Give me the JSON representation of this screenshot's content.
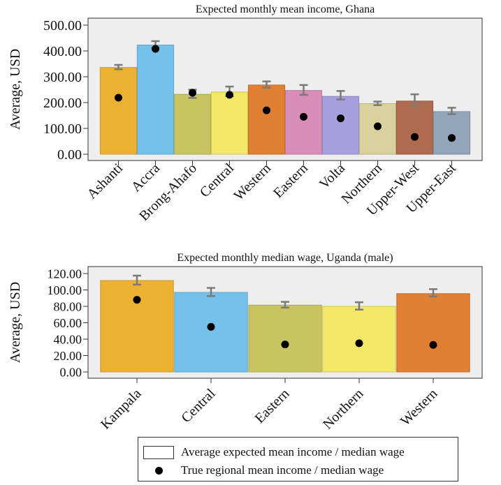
{
  "chart_data": [
    {
      "type": "bar",
      "title": "Expected monthly mean income, Ghana",
      "ylabel": "Average, USD",
      "xlabel": "",
      "ylim": [
        0,
        500
      ],
      "yticks": [
        "0.00",
        "100.00",
        "200.00",
        "300.00",
        "400.00",
        "500.00"
      ],
      "grid": false,
      "categories": [
        "Ashanti",
        "Accra",
        "Brong-Ahafo",
        "Central",
        "Western",
        "Eastern",
        "Volta",
        "Northern",
        "Upper-West",
        "Upper-East"
      ],
      "bar_colors": [
        "#EDB132",
        "#74C1EC",
        "#C8C462",
        "#F3E767",
        "#E17F33",
        "#D88EB8",
        "#A89FDF",
        "#D9D09B",
        "#AE6B50",
        "#93A6BB"
      ],
      "series": [
        {
          "values": [
            336,
            423,
            232,
            241,
            268,
            247,
            224,
            196,
            206,
            165
          ]
        },
        {
          "values": [
            219,
            408,
            238,
            230,
            170,
            145,
            139,
            108,
            67,
            63
          ]
        }
      ],
      "error_bars": [
        [
          329,
          346
        ],
        [
          412,
          438
        ],
        [
          218,
          250
        ],
        [
          225,
          262
        ],
        [
          258,
          282
        ],
        [
          230,
          268
        ],
        [
          212,
          245
        ],
        [
          190,
          204
        ],
        [
          188,
          232
        ],
        [
          155,
          180
        ]
      ]
    },
    {
      "type": "bar",
      "title": "Expected monthly median wage, Uganda (male)",
      "ylabel": "Average, USD",
      "xlabel": "",
      "ylim": [
        0,
        120
      ],
      "yticks": [
        "0.00",
        "20.00",
        "40.00",
        "60.00",
        "80.00",
        "100.00",
        "120.00"
      ],
      "grid": false,
      "categories": [
        "Kampala",
        "Central",
        "Eastern",
        "Northern",
        "Western"
      ],
      "bar_colors": [
        "#EDB132",
        "#74C1EC",
        "#C8C462",
        "#F3E767",
        "#E17F33"
      ],
      "series": [
        {
          "values": [
            111.5,
            97,
            81.5,
            80,
            95.5
          ]
        },
        {
          "values": [
            88,
            55,
            33.5,
            35,
            33
          ]
        }
      ],
      "error_bars": [
        [
          106.5,
          117.5
        ],
        [
          92.5,
          102.5
        ],
        [
          78.5,
          85.5
        ],
        [
          76,
          85
        ],
        [
          92,
          101
        ]
      ]
    }
  ],
  "legend": {
    "position": "bottom",
    "items": [
      {
        "label": "Average expected mean income / median wage",
        "marker": "bar"
      },
      {
        "label": "True regional mean income / median wage",
        "marker": "dot"
      }
    ]
  }
}
